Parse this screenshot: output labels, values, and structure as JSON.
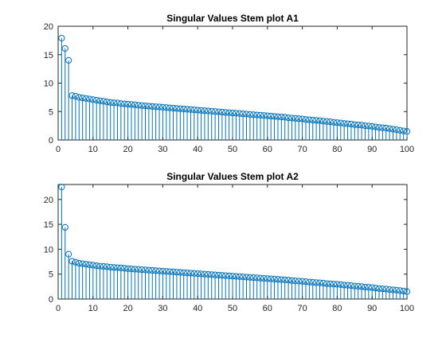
{
  "chart_data": [
    {
      "type": "stem",
      "title": "Singular Values Stem plot A1",
      "xlabel": "",
      "ylabel": "",
      "xlim": [
        0,
        100
      ],
      "ylim": [
        0,
        20
      ],
      "xticks": [
        0,
        10,
        20,
        30,
        40,
        50,
        60,
        70,
        80,
        90,
        100
      ],
      "yticks": [
        0,
        5,
        10,
        15,
        20
      ],
      "color": "#0072BD",
      "grid": false,
      "series": [
        {
          "values": [
            17.9,
            16.1,
            14.0,
            7.8,
            7.7,
            7.5,
            7.4,
            7.3,
            7.2,
            7.1,
            7.0,
            6.9,
            6.8,
            6.7,
            6.6,
            6.55,
            6.5,
            6.4,
            6.35,
            6.3,
            6.25,
            6.2,
            6.1,
            6.05,
            6.0,
            5.95,
            5.9,
            5.85,
            5.8,
            5.75,
            5.7,
            5.65,
            5.6,
            5.55,
            5.5,
            5.45,
            5.4,
            5.35,
            5.3,
            5.25,
            5.2,
            5.15,
            5.1,
            5.05,
            5.0,
            4.95,
            4.9,
            4.85,
            4.8,
            4.75,
            4.7,
            4.65,
            4.6,
            4.55,
            4.5,
            4.45,
            4.4,
            4.35,
            4.3,
            4.25,
            4.2,
            4.15,
            4.1,
            4.05,
            4.0,
            3.9,
            3.85,
            3.8,
            3.75,
            3.7,
            3.6,
            3.55,
            3.5,
            3.45,
            3.4,
            3.3,
            3.25,
            3.2,
            3.1,
            3.05,
            3.0,
            2.9,
            2.85,
            2.8,
            2.7,
            2.65,
            2.6,
            2.5,
            2.45,
            2.4,
            2.3,
            2.2,
            2.15,
            2.1,
            2.0,
            1.9,
            1.8,
            1.7,
            1.6,
            1.5
          ]
        }
      ]
    },
    {
      "type": "stem",
      "title": "Singular Values Stem plot A2",
      "xlabel": "",
      "ylabel": "",
      "xlim": [
        0,
        100
      ],
      "ylim": [
        0,
        23
      ],
      "xticks": [
        0,
        10,
        20,
        30,
        40,
        50,
        60,
        70,
        80,
        90,
        100
      ],
      "yticks": [
        0,
        5,
        10,
        15,
        20
      ],
      "color": "#0072BD",
      "grid": false,
      "series": [
        {
          "values": [
            22.5,
            14.4,
            9.0,
            7.6,
            7.4,
            7.2,
            7.1,
            7.0,
            6.9,
            6.8,
            6.7,
            6.6,
            6.55,
            6.5,
            6.4,
            6.35,
            6.3,
            6.25,
            6.2,
            6.1,
            6.05,
            6.0,
            5.95,
            5.9,
            5.85,
            5.8,
            5.75,
            5.7,
            5.65,
            5.6,
            5.55,
            5.5,
            5.45,
            5.4,
            5.35,
            5.3,
            5.25,
            5.2,
            5.15,
            5.1,
            5.05,
            5.0,
            4.95,
            4.9,
            4.85,
            4.8,
            4.75,
            4.7,
            4.65,
            4.6,
            4.55,
            4.5,
            4.45,
            4.4,
            4.35,
            4.3,
            4.25,
            4.2,
            4.15,
            4.1,
            4.05,
            4.0,
            3.95,
            3.9,
            3.85,
            3.8,
            3.7,
            3.65,
            3.6,
            3.55,
            3.5,
            3.4,
            3.35,
            3.3,
            3.25,
            3.2,
            3.1,
            3.05,
            3.0,
            2.95,
            2.9,
            2.8,
            2.75,
            2.7,
            2.6,
            2.55,
            2.5,
            2.4,
            2.35,
            2.3,
            2.2,
            2.1,
            2.05,
            2.0,
            1.9,
            1.85,
            1.8,
            1.7,
            1.6,
            1.5
          ]
        }
      ]
    }
  ]
}
